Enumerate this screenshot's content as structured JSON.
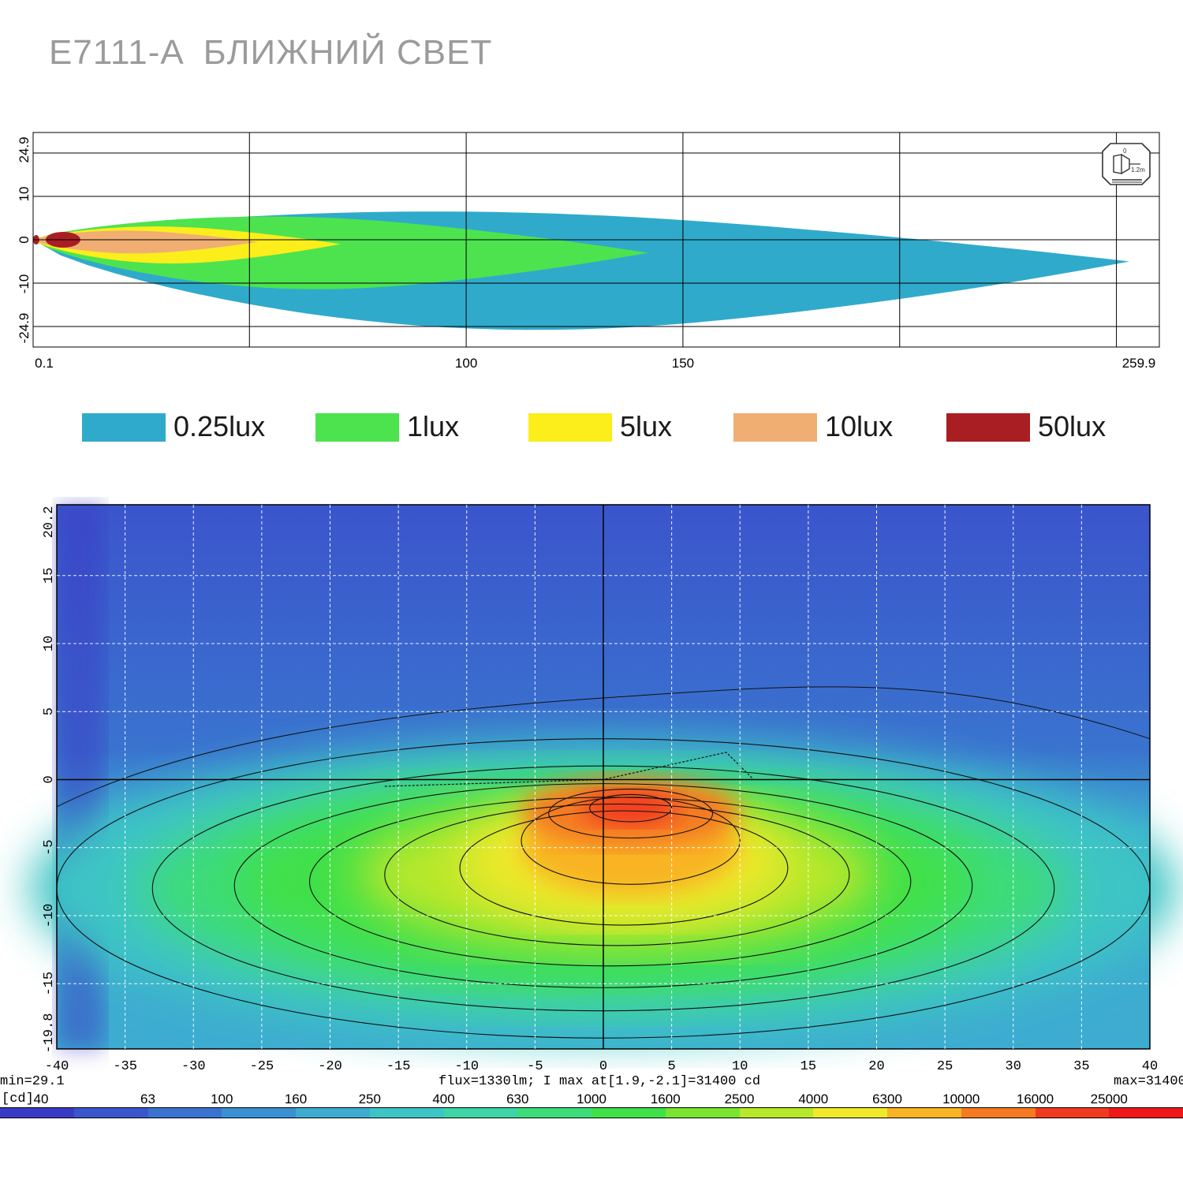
{
  "title": "E7111-A  БЛИЖНИЙ СВЕТ",
  "chart_data": [
    {
      "type": "area",
      "x_ticks": [
        "0.1",
        "100",
        "150",
        "259.9"
      ],
      "y_ticks": [
        "24.9",
        "10",
        "0",
        "-10",
        "-24.9"
      ],
      "xlim": [
        0.1,
        259.9
      ],
      "ylim": [
        -24.9,
        24.9
      ],
      "grid": true,
      "levels": [
        {
          "label": "0.25lux",
          "color": "#30aacb",
          "reach": 253,
          "width_max": 19
        },
        {
          "label": "1lux",
          "color": "#4de34f",
          "reach": 142,
          "width_max": 10
        },
        {
          "label": "5lux",
          "color": "#fbee1b",
          "reach": 71,
          "width_max": 5
        },
        {
          "label": "10lux",
          "color": "#f0ae73",
          "reach": 52,
          "width_max": 3.5
        },
        {
          "label": "50lux",
          "color": "#a91e22",
          "reach": 12,
          "width_max": 1.8
        }
      ],
      "legend_position": "bottom"
    },
    {
      "type": "heatmap",
      "x_ticks": [
        "-40",
        "-35",
        "-30",
        "-25",
        "-20",
        "-15",
        "-10",
        "-5",
        "0",
        "5",
        "10",
        "15",
        "20",
        "25",
        "30",
        "35",
        "40"
      ],
      "y_ticks": [
        "20.2",
        "15",
        "10",
        "5",
        "0",
        "-5",
        "-10",
        "-15",
        "-19.8"
      ],
      "xlim": [
        -40,
        40
      ],
      "ylim": [
        -19.8,
        20.2
      ],
      "grid": true,
      "unit": "[cd]",
      "min_text": "min=29.1",
      "max_text": "max=31400",
      "info_text": "flux=1330lm; I max at[1.9,-2.1]=31400 cd",
      "peak": {
        "x": 1.9,
        "y": -2.1,
        "value": 31400
      },
      "colorbar_labels": [
        "40",
        "63",
        "100",
        "160",
        "250",
        "400",
        "630",
        "1000",
        "1600",
        "2500",
        "4000",
        "6300",
        "10000",
        "16000",
        "25000"
      ],
      "colorbar_colors": [
        "#3a3bc4",
        "#3b55cc",
        "#3a73cf",
        "#3a90d0",
        "#3dacd0",
        "#3dc5c5",
        "#3dd4a6",
        "#3ddc7a",
        "#40e048",
        "#7ae430",
        "#b7e82a",
        "#f0e82a",
        "#f8b424",
        "#f57a22",
        "#f03a20",
        "#ee1818"
      ]
    }
  ]
}
